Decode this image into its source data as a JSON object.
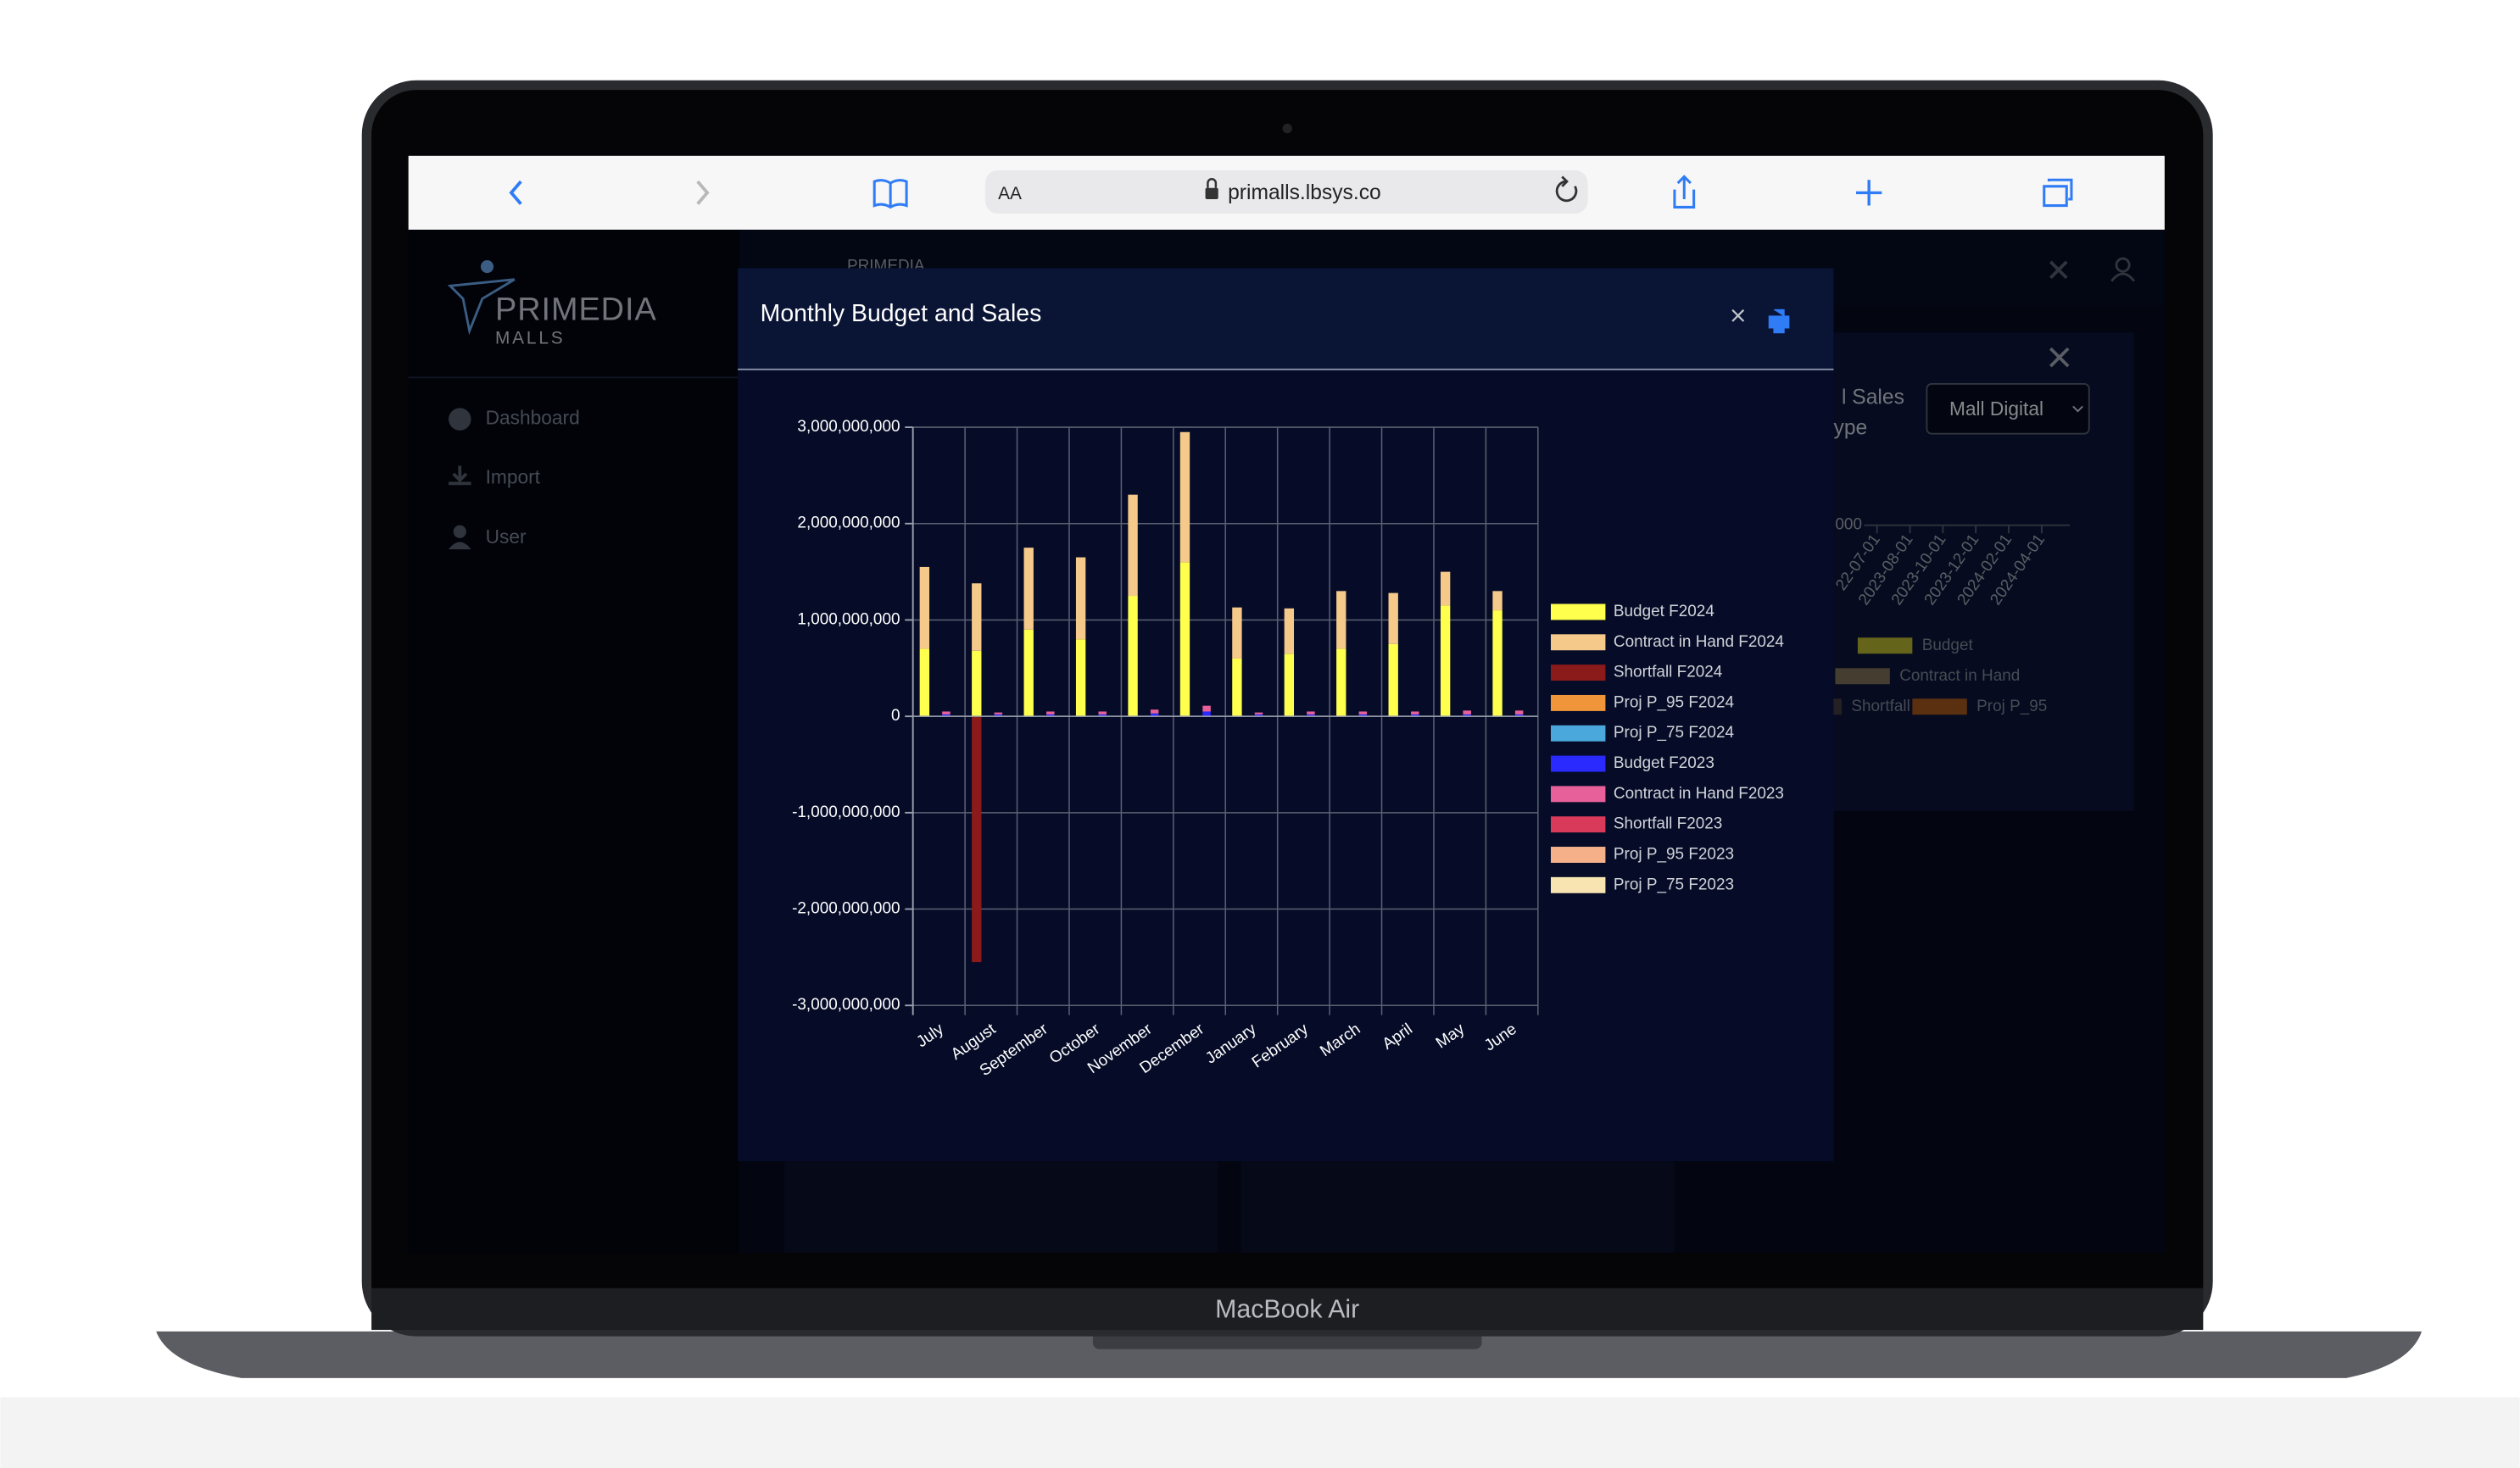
{
  "browser": {
    "text_size": "AA",
    "url": "primalls.lbsys.co"
  },
  "sidebar": {
    "logo": "PRIMEDIA",
    "logo_sub": "MALLS",
    "items": [
      "Dashboard",
      "Import",
      "User"
    ]
  },
  "header": {
    "brand": "PRIMEDIA"
  },
  "background_panel": {
    "title_fragment": "l Sales",
    "subtitle_fragment": "ype",
    "dropdown": "Mall Digital",
    "axis_fragment": "000",
    "dates": [
      "22-07-01",
      "2023-08-01",
      "2023-10-01",
      "2023-12-01",
      "2024-02-01",
      "2024-04-01"
    ],
    "legend": [
      "Budget",
      "Contract in Hand",
      "Shortfall",
      "Proj P_95"
    ]
  },
  "device": {
    "label": "MacBook Air"
  },
  "chart_data": {
    "type": "stacked-bar",
    "title": "Monthly Budget and Sales",
    "categories": [
      "July",
      "August",
      "September",
      "October",
      "November",
      "December",
      "January",
      "February",
      "March",
      "April",
      "May",
      "June"
    ],
    "series": [
      {
        "name": "Budget F2024",
        "color": "#ffff4d",
        "values": [
          700000000,
          680000000,
          900000000,
          800000000,
          1250000000,
          1600000000,
          600000000,
          650000000,
          700000000,
          750000000,
          1150000000,
          1100000000
        ]
      },
      {
        "name": "Contract in Hand F2024",
        "color": "#f5c98a",
        "values": [
          850000000,
          700000000,
          850000000,
          850000000,
          1050000000,
          1350000000,
          530000000,
          470000000,
          600000000,
          530000000,
          350000000,
          200000000
        ]
      },
      {
        "name": "Shortfall F2024",
        "color": "#8b1a1a",
        "values": [
          0,
          -2550000000,
          0,
          0,
          0,
          0,
          0,
          0,
          0,
          0,
          0,
          0
        ]
      },
      {
        "name": "Proj P_95  F2024",
        "color": "#f0953a",
        "values": [
          0,
          0,
          0,
          0,
          0,
          0,
          0,
          0,
          0,
          0,
          0,
          0
        ]
      },
      {
        "name": "Proj P_75  F2024",
        "color": "#4aa8dc",
        "values": [
          0,
          0,
          0,
          0,
          0,
          0,
          0,
          0,
          0,
          0,
          0,
          0
        ]
      },
      {
        "name": "Budget F2023",
        "color": "#2a2aff",
        "values": [
          20000000,
          20000000,
          20000000,
          20000000,
          30000000,
          50000000,
          20000000,
          20000000,
          20000000,
          20000000,
          20000000,
          20000000
        ]
      },
      {
        "name": "Contract in Hand F2023",
        "color": "#e8609a",
        "values": [
          30000000,
          20000000,
          30000000,
          30000000,
          40000000,
          60000000,
          20000000,
          30000000,
          30000000,
          30000000,
          40000000,
          40000000
        ]
      },
      {
        "name": "Shortfall F2023",
        "color": "#d93a5a",
        "values": [
          0,
          0,
          0,
          0,
          0,
          0,
          0,
          0,
          0,
          0,
          0,
          0
        ]
      },
      {
        "name": "Proj P_95  F2023",
        "color": "#f5b08a",
        "values": [
          0,
          0,
          0,
          0,
          0,
          0,
          0,
          0,
          0,
          0,
          0,
          0
        ]
      },
      {
        "name": "Proj P_75  F2023",
        "color": "#f8e4b0",
        "values": [
          0,
          0,
          0,
          0,
          0,
          0,
          0,
          0,
          0,
          0,
          0,
          0
        ]
      }
    ],
    "ylim": [
      -3000000000,
      3000000000
    ],
    "yticks": [
      {
        "value": -3000000000,
        "label": "-3,000,000,000"
      },
      {
        "value": -2000000000,
        "label": "-2,000,000,000"
      },
      {
        "value": -1000000000,
        "label": "-1,000,000,000"
      },
      0,
      {
        "value": 1000000000,
        "label": "1,000,000,000"
      },
      {
        "value": 2000000000,
        "label": "2,000,000,000"
      },
      {
        "value": 3000000000,
        "label": "3,000,000,000"
      }
    ],
    "grid": true,
    "legend": "right"
  }
}
